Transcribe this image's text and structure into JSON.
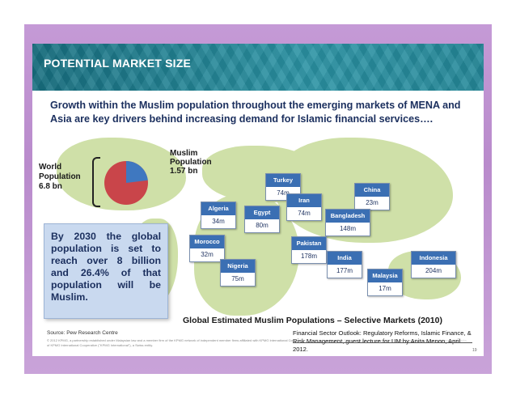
{
  "header": {
    "title": "POTENTIAL MARKET SIZE"
  },
  "subtitle": "Growth within the Muslim population throughout the emerging markets of MENA and Asia are key drivers behind increasing demand for Islamic financial services….",
  "pie": {
    "world_label": "World Population 6.8 bn",
    "muslim_label": "Muslim Population 1.57 bn",
    "world_value_bn": 6.8,
    "muslim_value_bn": 1.57,
    "colors": {
      "world": "#c9454a",
      "muslim": "#3f78c0"
    }
  },
  "callout": "By 2030 the global population is set to reach over 8 billion and 26.4% of that population will be Muslim.",
  "countries": [
    {
      "name": "Turkey",
      "value": "74m"
    },
    {
      "name": "China",
      "value": "23m"
    },
    {
      "name": "Algeria",
      "value": "34m"
    },
    {
      "name": "Egypt",
      "value": "80m"
    },
    {
      "name": "Iran",
      "value": "74m"
    },
    {
      "name": "Bangladesh",
      "value": "148m"
    },
    {
      "name": "Morocco",
      "value": "32m"
    },
    {
      "name": "Pakistan",
      "value": "178m"
    },
    {
      "name": "Indonesia",
      "value": "204m"
    },
    {
      "name": "India",
      "value": "177m"
    },
    {
      "name": "Nigeria",
      "value": "75m"
    },
    {
      "name": "Malaysia",
      "value": "17m"
    }
  ],
  "caption": "Global Estimated Muslim Populations – Selective Markets (2010)",
  "source": "Source: Pew Research Centre",
  "footer_small": "© 2012 KPMG, a partnership established under Malaysian law and a member firm of the KPMG network of independent member firms affiliated with KPMG International Cooperative (\"KPMG International\"), a Swiss entity. All rights reserved. KPMG and the KPMG logo are registered trademarks of KPMG International Cooperative (\"KPMG International\"), a Swiss entity.",
  "page_number": "19",
  "note": "Financial Sector Outlook: Regulatory Reforms, Islamic Finance, & Risk Management, guest lecture for UM by Anita Menon, April 2012."
}
